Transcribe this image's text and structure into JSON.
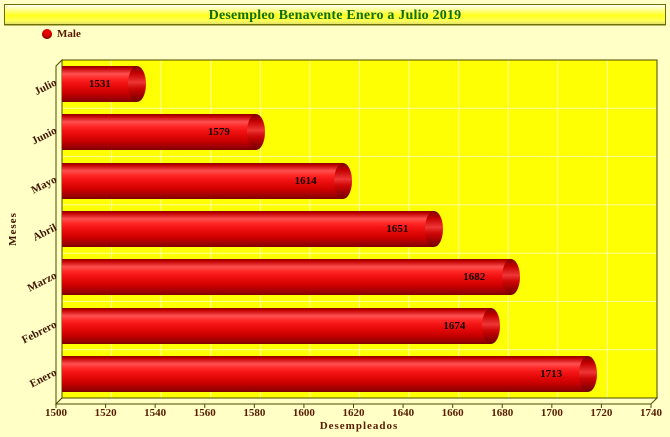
{
  "window": {
    "title": "Desempleo Benavente Enero a Julio 2019"
  },
  "legend": {
    "items": [
      {
        "label": "Male",
        "color": "#e60000"
      }
    ]
  },
  "chart_data": {
    "type": "bar",
    "orientation": "horizontal",
    "title": "Desempleo Benavente Enero a Julio 2019",
    "categories": [
      "Julio",
      "Junio",
      "Mayo",
      "Abril",
      "Marzo",
      "Febrero",
      "Enero"
    ],
    "series": [
      {
        "name": "Male",
        "color": "#e60000",
        "values": [
          1531,
          1579,
          1614,
          1651,
          1682,
          1674,
          1713
        ]
      }
    ],
    "value_labels": [
      1531,
      1579,
      1614,
      1651,
      1682,
      1674,
      1713
    ],
    "xlabel": "Desempleados",
    "ylabel": "Meses",
    "xlim": [
      1500,
      1740
    ],
    "xticks": [
      1500,
      1520,
      1540,
      1560,
      1580,
      1600,
      1620,
      1640,
      1660,
      1680,
      1700,
      1720,
      1740
    ],
    "grid": true,
    "legend_position": "top-left"
  },
  "colors": {
    "page_bg": "#ffffc6",
    "plot_bg": "#ffff04",
    "grid": "#ffffa0",
    "frame": "#4b4b00",
    "wall_fill": "#ffffc3",
    "bar": "#e60000",
    "title_text": "#0e6e0e",
    "axis_text": "#5a1c00"
  }
}
